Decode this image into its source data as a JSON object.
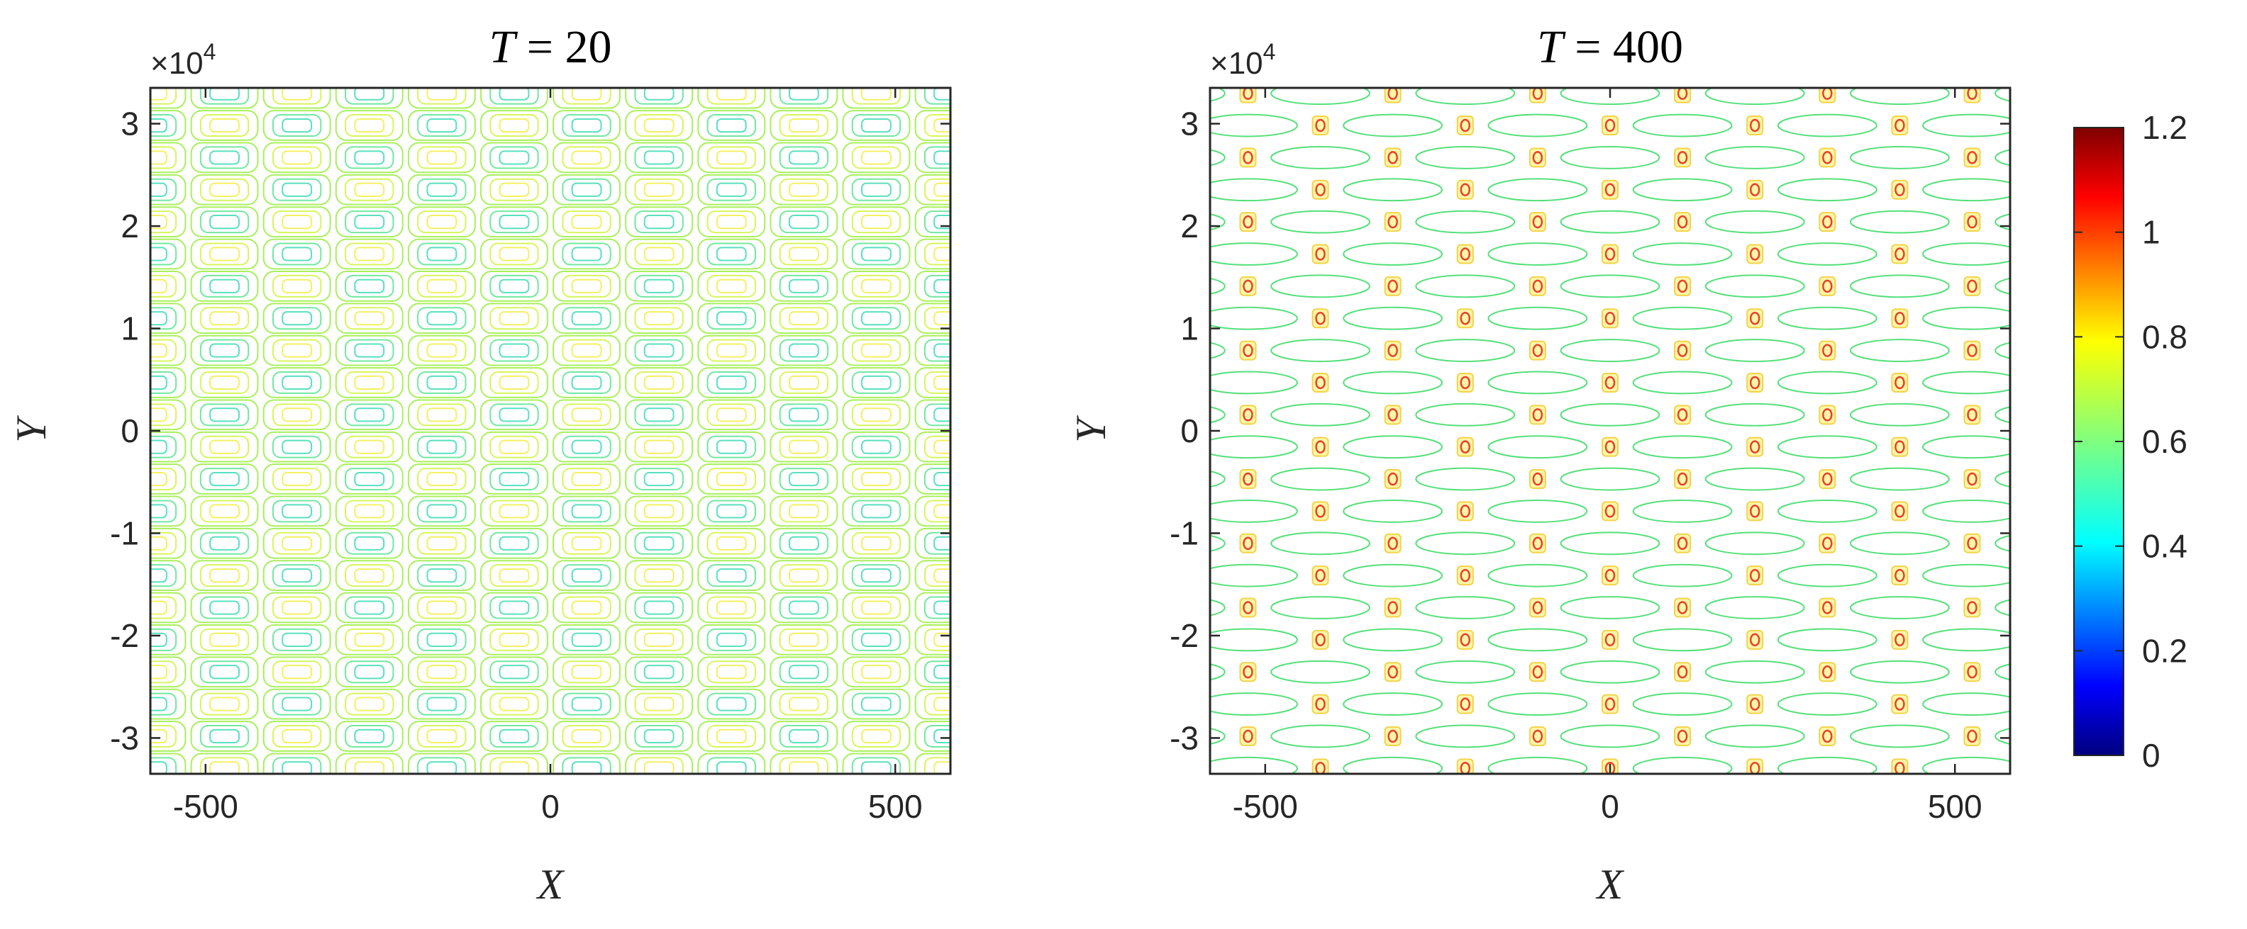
{
  "chart_data": [
    {
      "type": "contour",
      "title_var": "T",
      "title_eq": " = 20",
      "xlabel": "X",
      "ylabel": "Y",
      "xlim": [
        -580,
        580
      ],
      "ylim": [
        -3.35,
        3.35
      ],
      "y_scale_label": "×10",
      "y_scale_exp": "4",
      "xticks": [
        -500,
        0,
        500
      ],
      "xtick_labels": [
        "-500",
        "0",
        "500"
      ],
      "yticks": [
        -3,
        -2,
        -1,
        0,
        1,
        2,
        3
      ],
      "ytick_labels": [
        "-3",
        "-2",
        "-1",
        "0",
        "1",
        "2",
        "3"
      ],
      "x_period": 210,
      "y_period": 0.628,
      "amplitude_range": [
        0.55,
        0.8
      ],
      "description_levels": [
        0.56,
        0.6,
        0.64,
        0.68,
        0.72,
        0.76
      ]
    },
    {
      "type": "contour",
      "title_var": "T",
      "title_eq": " = 400",
      "xlabel": "X",
      "ylabel": "Y",
      "xlim": [
        -580,
        580
      ],
      "ylim": [
        -3.35,
        3.35
      ],
      "y_scale_label": "×10",
      "y_scale_exp": "4",
      "xticks": [
        -500,
        0,
        500
      ],
      "xtick_labels": [
        "-500",
        "0",
        "500"
      ],
      "yticks": [
        -3,
        -2,
        -1,
        0,
        1,
        2,
        3
      ],
      "ytick_labels": [
        "-3",
        "-2",
        "-1",
        "0",
        "1",
        "2",
        "3"
      ],
      "x_period": 210,
      "y_period": 0.628,
      "amplitude_range": [
        0.6,
        1.1
      ],
      "description_levels": [
        0.62,
        0.8,
        1.0
      ]
    }
  ],
  "colorbar": {
    "range": [
      0,
      1.2
    ],
    "ticks": [
      0,
      0.2,
      0.4,
      0.6,
      0.8,
      1,
      1.2
    ],
    "tick_labels": [
      "0",
      "0.2",
      "0.4",
      "0.6",
      "0.8",
      "1",
      "1.2"
    ],
    "colormap": "jet"
  }
}
